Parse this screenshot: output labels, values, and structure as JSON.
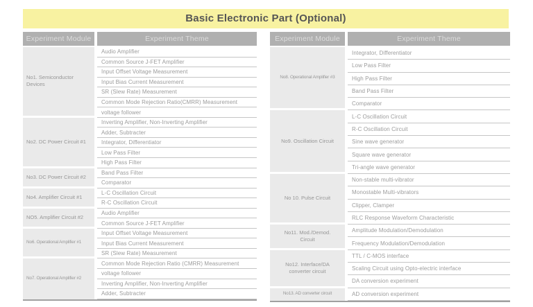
{
  "title": "Basic Electronic Part (Optional)",
  "colors": {
    "title_bg": "#f8f2a1",
    "title_text": "#555555",
    "header_bg": "#b0b0b0",
    "header_text": "#dcdcdc",
    "module_bg": "#eaeaea",
    "module_text": "#969696",
    "theme_text": "#9c9c9c",
    "row_line": "#c5c5c5",
    "table_end_line": "#a0a0a0"
  },
  "column_headers": {
    "module": "Experiment Module",
    "theme": "Experiment Theme"
  },
  "tables": [
    {
      "side": "left",
      "groups": [
        {
          "module": "No1. Semiconductor\nDevices",
          "themes": [
            "Audio Amplifier",
            "Common Source J-FET Amplifier",
            "Input Offset Voltage Measurement",
            "Input Bias Current Measurement",
            "SR (Slew Rate) Measurement",
            "Common Mode Rejection Ratio(CMRR) Measurement",
            "voltage follower"
          ]
        },
        {
          "module": "No2. DC Power Circuit #1",
          "themes": [
            "Inverting Amplifier, Non-Inverting Amplifier",
            "Adder, Subtracter",
            "Integrator, Differentiator",
            "Low Pass Filter",
            "High Pass Filter"
          ]
        },
        {
          "module": "No3. DC Power Circuit #2",
          "themes": [
            "Band Pass Filter",
            "Comparator"
          ]
        },
        {
          "module": "No4. Amplifier Circuit #1",
          "themes": [
            "L-C Oscillation Circuit",
            "R-C Oscillation Circuit"
          ]
        },
        {
          "module": "NO5. Amplifier Circuit #2",
          "themes": [
            "Audio Amplifier",
            "Common Source J-FET Amplifier"
          ]
        },
        {
          "module": "No6. Operational Amplifier #1",
          "themes": [
            "Input Offset Voltage Measurement",
            "Input Bias Current Measurement",
            "SR (Slew Rate) Measurement"
          ]
        },
        {
          "module": "No7. Operational Amplifier #2",
          "themes": [
            "Common Mode Rejection Ratio (CMRR) Measurement",
            "voltage follower",
            "Inverting Amplifier, Non-Inverting Amplifier",
            "Adder, Subtracter"
          ]
        }
      ]
    },
    {
      "side": "right",
      "groups": [
        {
          "module": "No8. Operational Amplifier #3",
          "themes": [
            "Integrator, Differentiator",
            "Low Pass Filter",
            "High Pass Filter",
            "Band Pass Filter",
            "Comparator"
          ]
        },
        {
          "module": "No9. Oscillation Circuit",
          "themes": [
            "L-C Oscillation Circuit",
            "R-C Oscillation Circuit",
            "Sine wave generator",
            "Square wave generator",
            "Tri-angle wave generator"
          ]
        },
        {
          "module": "No 10. Pulse Circuit",
          "themes": [
            "Non-stable multi-vibrator",
            "Monostable Multi-vibrators",
            "Clipper, Clamper",
            "RLC Response Waveform Characteristic"
          ]
        },
        {
          "module": "No11. Mod./Demod.\nCircuit",
          "themes": [
            "Amplitude Modulation/Demodulation",
            "Frequency Modulation/Demodulation"
          ]
        },
        {
          "module": "No12. Interface/DA\nconverter circuit",
          "themes": [
            "TTL / C-MOS interface",
            "Scaling Circuit using Opto-electric interface",
            "DA conversion experiment"
          ]
        },
        {
          "module": "No13. AD converter circuit",
          "themes": [
            "AD conversion experiment"
          ]
        }
      ]
    }
  ]
}
